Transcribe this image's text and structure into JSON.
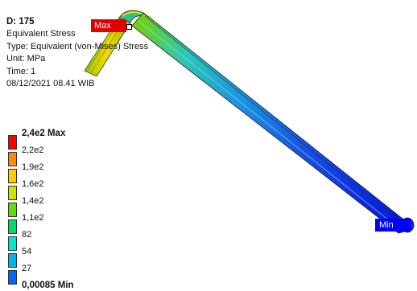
{
  "info": {
    "title": "D: 175",
    "result": "Equivalent Stress",
    "type": "Type: Equivalent (von-Mises) Stress",
    "unit": "Unit: MPa",
    "time": "Time: 1",
    "date": "08/12/2021 08.41 WIB"
  },
  "legend": {
    "items": [
      {
        "label": "2,4e2 Max",
        "color": "#ff0000",
        "bold": true
      },
      {
        "label": "2,2e2",
        "color": "#ff8c00",
        "bold": false
      },
      {
        "label": "1,9e2",
        "color": "#ffcc00",
        "bold": false
      },
      {
        "label": "1,6e2",
        "color": "#c8e600",
        "bold": false
      },
      {
        "label": "1,4e2",
        "color": "#66dd00",
        "bold": false
      },
      {
        "label": "1,1e2",
        "color": "#00dd66",
        "bold": false
      },
      {
        "label": "82",
        "color": "#00e6cc",
        "bold": false
      },
      {
        "label": "54",
        "color": "#00b4ee",
        "bold": false
      },
      {
        "label": "27",
        "color": "#0066ff",
        "bold": false
      },
      {
        "label": "0,00085 Min",
        "color": "#0000ff",
        "bold": true
      }
    ]
  },
  "probes": {
    "max": "Max",
    "min": "Min"
  }
}
